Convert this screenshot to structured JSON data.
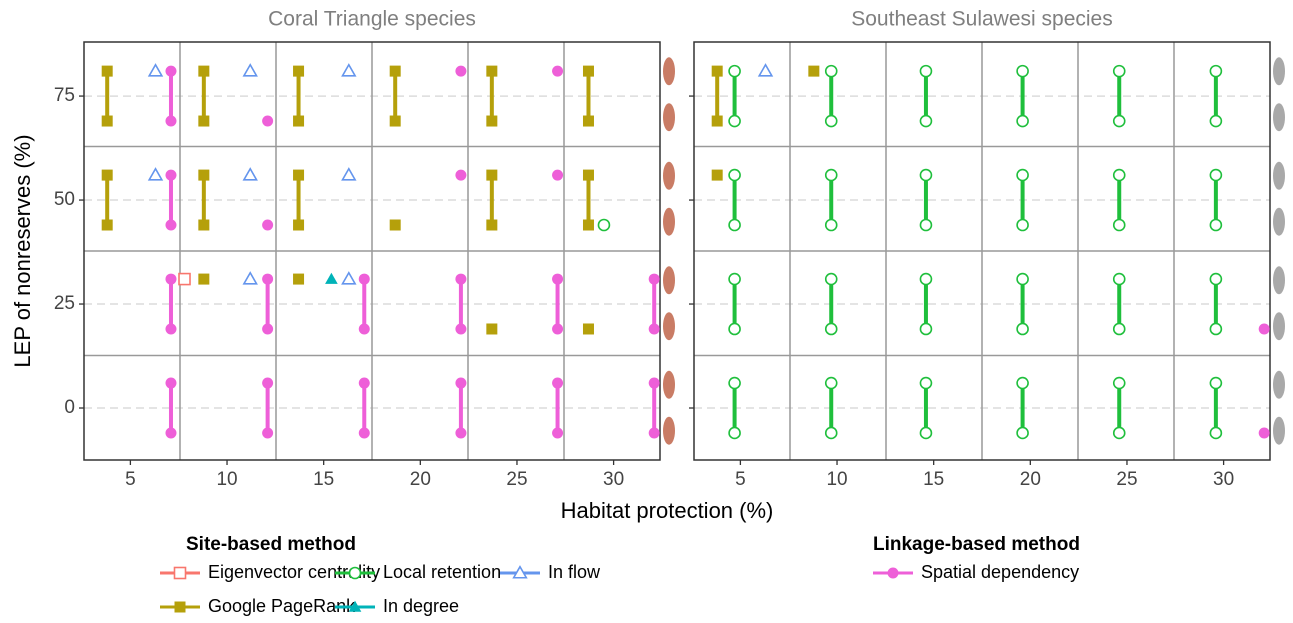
{
  "chart_data": [
    {
      "type": "line",
      "title": "Coral Triangle species",
      "xlim": [
        2.6,
        32.4
      ],
      "ylim": [
        -12.5,
        88
      ],
      "xticks": [
        5,
        10,
        15,
        20,
        25,
        30
      ],
      "yticks": [
        0,
        25,
        50,
        75
      ],
      "grid": true,
      "series": [
        {
          "name": "Eigenvector centrality",
          "color": "#f8766d",
          "marker": "square-open",
          "x": [
            7.8
          ],
          "values": [
            31
          ]
        },
        {
          "name": "Google PageRank",
          "color": "#b5a00b",
          "marker": "square",
          "x": [
            3.8,
            3.8,
            null,
            8.8,
            8.8,
            null,
            13.7,
            13.7,
            null,
            18.7,
            18.7,
            null,
            23.7,
            23.7,
            null,
            28.7,
            28.7,
            null,
            3.8,
            3.8,
            null,
            8.8,
            8.8,
            null,
            13.7,
            13.7,
            null,
            18.7,
            null,
            23.7,
            23.7,
            null,
            28.7,
            28.7,
            null,
            8.8,
            null,
            13.7,
            null,
            23.7,
            null,
            28.7
          ],
          "values": [
            81,
            69,
            null,
            81,
            69,
            null,
            81,
            69,
            null,
            81,
            69,
            null,
            81,
            69,
            null,
            81,
            69,
            null,
            56,
            44,
            null,
            56,
            44,
            null,
            56,
            44,
            null,
            44,
            null,
            56,
            44,
            null,
            56,
            44,
            null,
            31,
            null,
            31,
            null,
            19,
            null,
            19
          ]
        },
        {
          "name": "In degree",
          "color": "#00b3b8",
          "marker": "triangle",
          "x": [
            15.4
          ],
          "values": [
            31
          ]
        },
        {
          "name": "Local retention",
          "color": "#1fbf3c",
          "marker": "circle-open",
          "x": [
            29.5
          ],
          "values": [
            44
          ]
        },
        {
          "name": "In flow",
          "color": "#6495ed",
          "marker": "triangle-open",
          "x": [
            6.3,
            null,
            11.2,
            null,
            16.3,
            null,
            6.3,
            null,
            11.2,
            null,
            16.3,
            null,
            11.2,
            null,
            16.3
          ],
          "values": [
            81,
            null,
            81,
            null,
            81,
            null,
            56,
            null,
            56,
            null,
            56,
            null,
            31,
            null,
            31
          ]
        },
        {
          "name": "Spatial dependency",
          "color": "#ee5fd8",
          "marker": "circle",
          "x": [
            7.1,
            7.1,
            null,
            12.1,
            null,
            22.1,
            null,
            27.1,
            null,
            7.1,
            7.1,
            null,
            12.1,
            null,
            22.1,
            null,
            27.1,
            null,
            7.1,
            7.1,
            null,
            12.1,
            12.1,
            null,
            17.1,
            17.1,
            null,
            22.1,
            22.1,
            null,
            27.1,
            27.1,
            null,
            32.1,
            32.1,
            null,
            7.1,
            7.1,
            null,
            12.1,
            12.1,
            null,
            17.1,
            17.1,
            null,
            22.1,
            22.1,
            null,
            27.1,
            27.1,
            null,
            32.1,
            32.1
          ],
          "values": [
            81,
            69,
            null,
            69,
            null,
            81,
            null,
            81,
            null,
            56,
            44,
            null,
            44,
            null,
            56,
            null,
            56,
            null,
            31,
            19,
            null,
            31,
            19,
            null,
            31,
            19,
            null,
            31,
            19,
            null,
            31,
            19,
            null,
            31,
            19,
            null,
            6,
            -6,
            null,
            6,
            -6,
            null,
            6,
            -6,
            null,
            6,
            -6,
            null,
            6,
            -6,
            null,
            6,
            -6
          ]
        }
      ]
    },
    {
      "type": "line",
      "title": "Southeast Sulawesi species",
      "xlim": [
        2.6,
        32.4
      ],
      "ylim": [
        -12.5,
        88
      ],
      "xticks": [
        5,
        10,
        15,
        20,
        25,
        30
      ],
      "yticks": [
        0,
        25,
        50,
        75
      ],
      "grid": true,
      "series": [
        {
          "name": "Google PageRank",
          "color": "#b5a00b",
          "marker": "square",
          "x": [
            3.8,
            3.8,
            null,
            8.8,
            null,
            3.8
          ],
          "values": [
            81,
            69,
            null,
            81,
            null,
            56
          ]
        },
        {
          "name": "Local retention",
          "color": "#1fbf3c",
          "marker": "circle-open",
          "x": [
            4.7,
            4.7,
            null,
            9.7,
            9.7,
            null,
            14.6,
            14.6,
            null,
            19.6,
            19.6,
            null,
            24.6,
            24.6,
            null,
            29.6,
            29.6,
            null,
            4.7,
            4.7,
            null,
            9.7,
            9.7,
            null,
            14.6,
            14.6,
            null,
            19.6,
            19.6,
            null,
            24.6,
            24.6,
            null,
            29.6,
            29.6,
            null,
            4.7,
            4.7,
            null,
            9.7,
            9.7,
            null,
            14.6,
            14.6,
            null,
            19.6,
            19.6,
            null,
            24.6,
            24.6,
            null,
            29.6,
            29.6,
            null,
            4.7,
            4.7,
            null,
            9.7,
            9.7,
            null,
            14.6,
            14.6,
            null,
            19.6,
            19.6,
            null,
            24.6,
            24.6,
            null,
            29.6,
            29.6
          ],
          "values": [
            81,
            69,
            null,
            81,
            69,
            null,
            81,
            69,
            null,
            81,
            69,
            null,
            81,
            69,
            null,
            81,
            69,
            null,
            56,
            44,
            null,
            56,
            44,
            null,
            56,
            44,
            null,
            56,
            44,
            null,
            56,
            44,
            null,
            56,
            44,
            null,
            31,
            19,
            null,
            31,
            19,
            null,
            31,
            19,
            null,
            31,
            19,
            null,
            31,
            19,
            null,
            31,
            19,
            null,
            6,
            -6,
            null,
            6,
            -6,
            null,
            6,
            -6,
            null,
            6,
            -6,
            null,
            6,
            -6,
            null,
            6,
            -6
          ]
        },
        {
          "name": "In flow",
          "color": "#6495ed",
          "marker": "triangle-open",
          "x": [
            6.3
          ],
          "values": [
            81
          ]
        },
        {
          "name": "Spatial dependency",
          "color": "#ee5fd8",
          "marker": "circle",
          "x": [
            32.1,
            null,
            32.1
          ],
          "values": [
            19,
            null,
            -6
          ]
        }
      ]
    }
  ],
  "x_label": "Habitat protection (%)",
  "y_label": "LEP of nonreserves (%)",
  "legend_titles": [
    "Site-based method",
    "Linkage-based method"
  ]
}
